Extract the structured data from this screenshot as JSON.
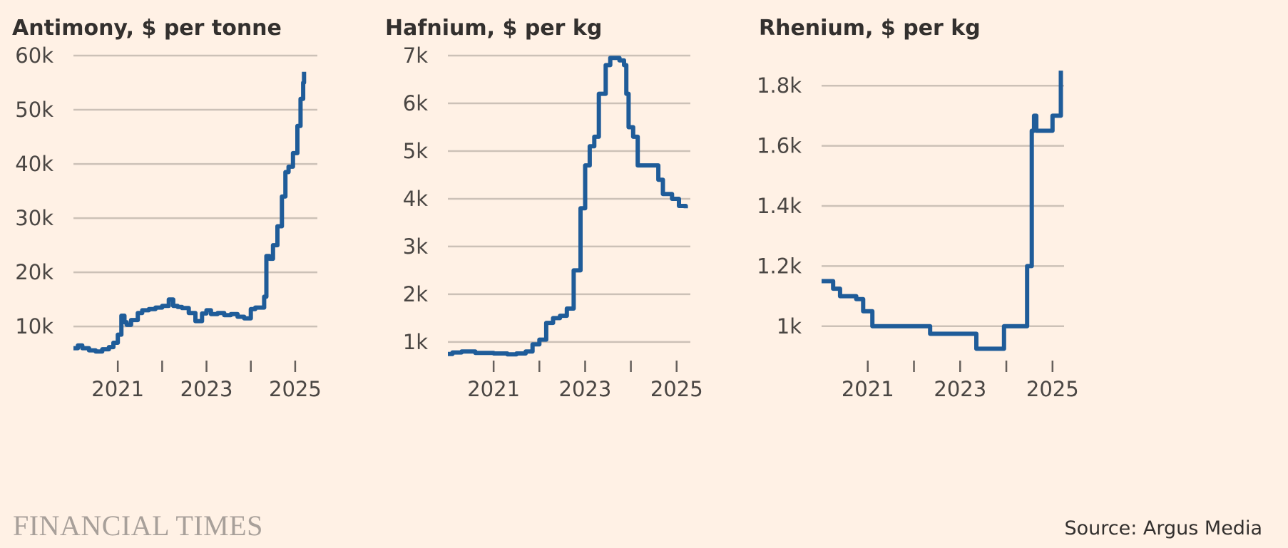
{
  "brand": "FINANCIAL TIMES",
  "source": "Source: Argus Media",
  "colors": {
    "background": "#fff1e5",
    "line": "#1f5c99",
    "grid": "#ccc1b7",
    "text": "#33302e"
  },
  "chart_data": [
    {
      "type": "line",
      "title": "Antimony, $ per tonne",
      "xlabel": "",
      "ylabel": "",
      "xlim": [
        2020.0,
        2025.5
      ],
      "ylim": [
        4500,
        60000
      ],
      "yticks": [
        10000,
        20000,
        30000,
        40000,
        50000,
        60000
      ],
      "ytick_labels": [
        "10k",
        "20k",
        "30k",
        "40k",
        "50k",
        "60k"
      ],
      "xticks": [
        2021,
        2022,
        2023,
        2024,
        2025
      ],
      "xtick_labels": [
        "2021",
        "",
        "2023",
        "",
        "2025"
      ],
      "grid": true,
      "series": [
        {
          "x": [
            2020.0,
            2020.1,
            2020.2,
            2020.35,
            2020.5,
            2020.65,
            2020.8,
            2020.9,
            2021.0,
            2021.08,
            2021.15,
            2021.2,
            2021.3,
            2021.45,
            2021.55,
            2021.7,
            2021.85,
            2022.0,
            2022.15,
            2022.25,
            2022.35,
            2022.45,
            2022.6,
            2022.75,
            2022.9,
            2023.0,
            2023.1,
            2023.25,
            2023.4,
            2023.55,
            2023.7,
            2023.85,
            2024.0,
            2024.1,
            2024.3,
            2024.35,
            2024.42,
            2024.5,
            2024.6,
            2024.7,
            2024.78,
            2024.85,
            2024.95,
            2025.05,
            2025.12,
            2025.18,
            2025.2
          ],
          "y": [
            6000,
            6500,
            6000,
            5600,
            5400,
            5800,
            6200,
            7000,
            8500,
            12000,
            10800,
            10300,
            11200,
            12500,
            13000,
            13200,
            13500,
            13800,
            15000,
            13800,
            13600,
            13400,
            12500,
            11000,
            12400,
            13000,
            12300,
            12500,
            12100,
            12300,
            11800,
            11500,
            13200,
            13500,
            15500,
            23000,
            22500,
            25000,
            28500,
            34000,
            38500,
            39500,
            42000,
            47000,
            52000,
            55000,
            57000
          ]
        }
      ]
    },
    {
      "type": "line",
      "title": "Hafnium, $ per kg",
      "xlabel": "",
      "ylabel": "",
      "xlim": [
        2020.0,
        2025.3
      ],
      "ylim": [
        700,
        7000
      ],
      "yticks": [
        1000,
        2000,
        3000,
        4000,
        5000,
        6000,
        7000
      ],
      "ytick_labels": [
        "1k",
        "2k",
        "3k",
        "4k",
        "5k",
        "6k",
        "7k"
      ],
      "xticks": [
        2021,
        2022,
        2023,
        2024,
        2025
      ],
      "xtick_labels": [
        "2021",
        "",
        "2023",
        "",
        "2025"
      ],
      "grid": true,
      "series": [
        {
          "x": [
            2020.0,
            2020.1,
            2020.3,
            2020.6,
            2021.0,
            2021.3,
            2021.5,
            2021.7,
            2021.85,
            2022.0,
            2022.15,
            2022.3,
            2022.45,
            2022.6,
            2022.75,
            2022.9,
            2023.0,
            2023.1,
            2023.2,
            2023.3,
            2023.45,
            2023.55,
            2023.65,
            2023.75,
            2023.85,
            2023.9,
            2023.95,
            2024.05,
            2024.15,
            2024.4,
            2024.6,
            2024.7,
            2024.9,
            2025.05,
            2025.2
          ],
          "y": [
            750,
            780,
            800,
            770,
            760,
            740,
            760,
            800,
            950,
            1050,
            1400,
            1500,
            1550,
            1700,
            2500,
            3800,
            4700,
            5100,
            5300,
            6200,
            6800,
            6950,
            6950,
            6900,
            6800,
            6200,
            5500,
            5300,
            4700,
            4700,
            4400,
            4100,
            4000,
            3850,
            3800
          ]
        }
      ]
    },
    {
      "type": "line",
      "title": "Rhenium, $ per kg",
      "xlabel": "",
      "ylabel": "",
      "xlim": [
        2020.0,
        2025.25
      ],
      "ylim": [
        900,
        1900
      ],
      "yticks": [
        1000,
        1200,
        1400,
        1600,
        1800
      ],
      "ytick_labels": [
        "1k",
        "1.2k",
        "1.4k",
        "1.6k",
        "1.8k"
      ],
      "xticks": [
        2021,
        2022,
        2023,
        2024,
        2025
      ],
      "xtick_labels": [
        "2021",
        "",
        "2023",
        "",
        "2025"
      ],
      "grid": true,
      "series": [
        {
          "x": [
            2020.0,
            2020.25,
            2020.4,
            2020.75,
            2020.9,
            2021.1,
            2022.35,
            2023.35,
            2023.95,
            2024.45,
            2024.55,
            2024.6,
            2024.65,
            2024.75,
            2025.0,
            2025.12,
            2025.18
          ],
          "y": [
            1150,
            1125,
            1100,
            1090,
            1050,
            1000,
            975,
            925,
            1000,
            1200,
            1650,
            1700,
            1650,
            1650,
            1700,
            1700,
            1850
          ]
        }
      ]
    }
  ]
}
